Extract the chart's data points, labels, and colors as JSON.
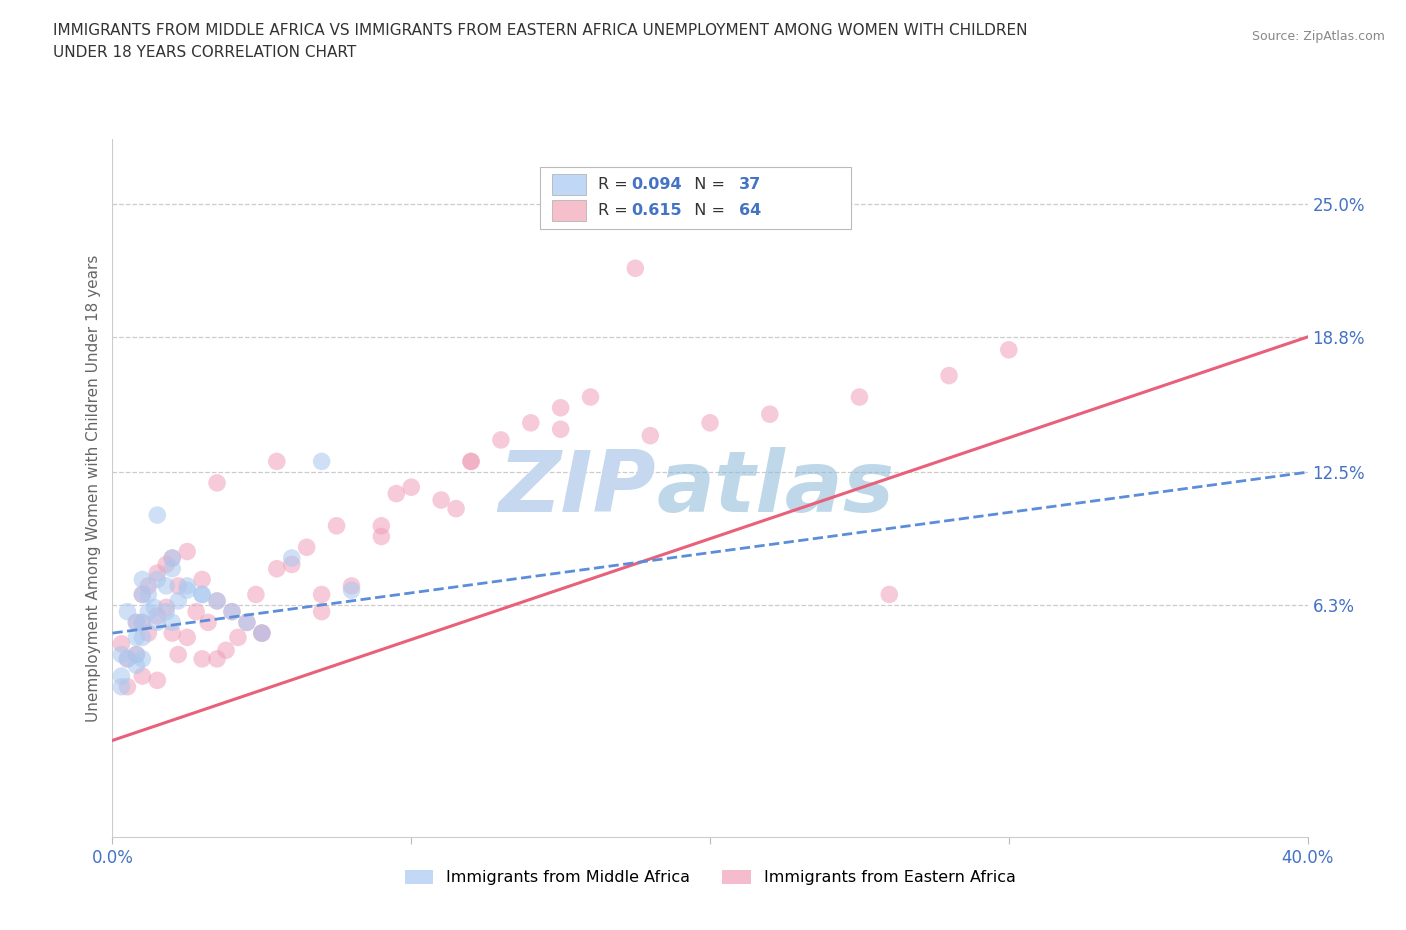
{
  "title": "IMMIGRANTS FROM MIDDLE AFRICA VS IMMIGRANTS FROM EASTERN AFRICA UNEMPLOYMENT AMONG WOMEN WITH CHILDREN\nUNDER 18 YEARS CORRELATION CHART",
  "source": "Source: ZipAtlas.com",
  "ylabel": "Unemployment Among Women with Children Under 18 years",
  "xlim": [
    0.0,
    0.4
  ],
  "ylim": [
    -0.045,
    0.28
  ],
  "xticks": [
    0.0,
    0.1,
    0.2,
    0.3,
    0.4
  ],
  "xtick_labels": [
    "0.0%",
    "",
    "",
    "",
    "40.0%"
  ],
  "ytick_labels_right": [
    "6.3%",
    "12.5%",
    "18.8%",
    "25.0%"
  ],
  "ytick_vals_right": [
    0.063,
    0.125,
    0.188,
    0.25
  ],
  "gridline_color": "#cccccc",
  "watermark_top": "ZIP",
  "watermark_bot": "atlas",
  "watermark_color": "#c5d8ef",
  "legend_R1_label": "R = ",
  "legend_R1_val": "0.094",
  "legend_N1_label": "  N = ",
  "legend_N1_val": "37",
  "legend_R2_label": "R =  ",
  "legend_R2_val": "0.615",
  "legend_N2_label": "  N = ",
  "legend_N2_val": "64",
  "blue_color": "#a8c8f0",
  "pink_color": "#f0a0b8",
  "blue_line_color": "#5b8dd9",
  "pink_line_color": "#e8607a",
  "title_color": "#333333",
  "source_color": "#888888",
  "axis_label_color": "#666666",
  "tick_color": "#4472c4",
  "legend_box_color_blue": "#c0d8f5",
  "legend_box_color_pink": "#f5c0cc",
  "legend_val_color": "#4472c4",
  "legend_label_color": "#333333",
  "bg_color": "#ffffff",
  "blue_line_x": [
    0.0,
    0.4
  ],
  "blue_line_y": [
    0.05,
    0.125
  ],
  "pink_line_x": [
    0.0,
    0.4
  ],
  "pink_line_y": [
    0.0,
    0.188
  ],
  "blue_scatter_x": [
    0.003,
    0.003,
    0.003,
    0.005,
    0.005,
    0.008,
    0.008,
    0.008,
    0.008,
    0.01,
    0.01,
    0.01,
    0.01,
    0.01,
    0.012,
    0.012,
    0.014,
    0.015,
    0.015,
    0.018,
    0.018,
    0.02,
    0.02,
    0.022,
    0.025,
    0.03,
    0.035,
    0.04,
    0.045,
    0.05,
    0.06,
    0.07,
    0.08,
    0.015,
    0.02,
    0.025,
    0.03
  ],
  "blue_scatter_y": [
    0.04,
    0.03,
    0.025,
    0.06,
    0.038,
    0.055,
    0.048,
    0.04,
    0.035,
    0.075,
    0.068,
    0.055,
    0.048,
    0.038,
    0.068,
    0.06,
    0.062,
    0.075,
    0.055,
    0.072,
    0.06,
    0.08,
    0.055,
    0.065,
    0.072,
    0.068,
    0.065,
    0.06,
    0.055,
    0.05,
    0.085,
    0.13,
    0.07,
    0.105,
    0.085,
    0.07,
    0.068
  ],
  "pink_scatter_x": [
    0.003,
    0.005,
    0.005,
    0.008,
    0.008,
    0.01,
    0.01,
    0.01,
    0.012,
    0.012,
    0.015,
    0.015,
    0.015,
    0.018,
    0.018,
    0.02,
    0.02,
    0.022,
    0.022,
    0.025,
    0.025,
    0.028,
    0.03,
    0.03,
    0.032,
    0.035,
    0.038,
    0.04,
    0.042,
    0.045,
    0.048,
    0.05,
    0.055,
    0.06,
    0.065,
    0.07,
    0.08,
    0.09,
    0.1,
    0.11,
    0.12,
    0.13,
    0.14,
    0.15,
    0.16,
    0.18,
    0.2,
    0.22,
    0.25,
    0.26,
    0.28,
    0.3,
    0.035,
    0.055,
    0.075,
    0.095,
    0.12,
    0.15,
    0.035,
    0.05,
    0.07,
    0.09,
    0.115,
    0.175
  ],
  "pink_scatter_y": [
    0.045,
    0.038,
    0.025,
    0.055,
    0.04,
    0.068,
    0.055,
    0.03,
    0.072,
    0.05,
    0.078,
    0.058,
    0.028,
    0.082,
    0.062,
    0.085,
    0.05,
    0.072,
    0.04,
    0.088,
    0.048,
    0.06,
    0.075,
    0.038,
    0.055,
    0.065,
    0.042,
    0.06,
    0.048,
    0.055,
    0.068,
    0.05,
    0.08,
    0.082,
    0.09,
    0.068,
    0.072,
    0.1,
    0.118,
    0.112,
    0.13,
    0.14,
    0.148,
    0.155,
    0.16,
    0.142,
    0.148,
    0.152,
    0.16,
    0.068,
    0.17,
    0.182,
    0.12,
    0.13,
    0.1,
    0.115,
    0.13,
    0.145,
    0.038,
    0.05,
    0.06,
    0.095,
    0.108,
    0.22
  ]
}
